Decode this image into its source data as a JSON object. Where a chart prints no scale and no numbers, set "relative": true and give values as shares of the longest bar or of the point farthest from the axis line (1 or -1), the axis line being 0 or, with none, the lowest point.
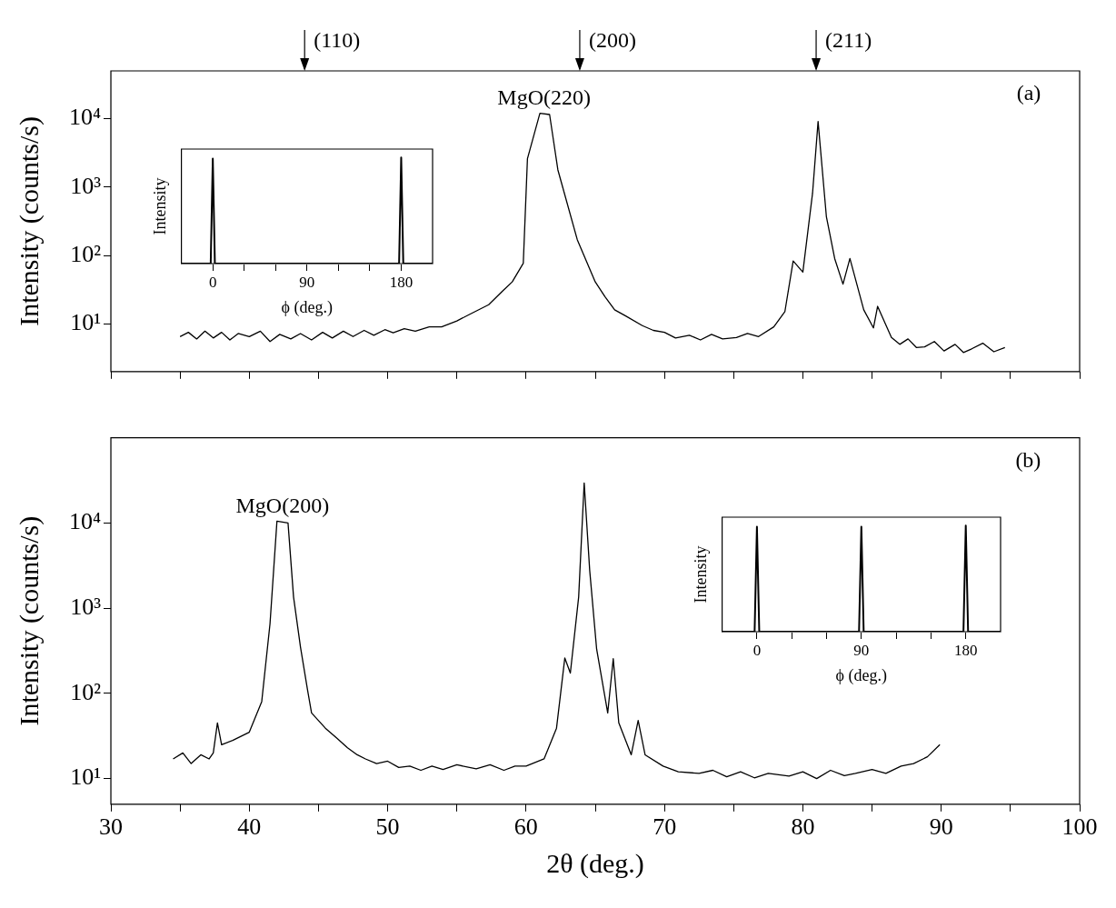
{
  "chart_data": [
    {
      "type": "line",
      "ylabel": "Intensity (counts/s)",
      "log": "y",
      "xlim": [
        30,
        100
      ],
      "xticks": [
        30,
        {
          "value": 35,
          "label": null
        },
        40,
        {
          "value": 45,
          "label": null
        },
        50,
        {
          "value": 55,
          "label": null
        },
        60,
        {
          "value": 65,
          "label": null
        },
        70,
        {
          "value": 75,
          "label": null
        },
        80,
        {
          "value": 85,
          "label": null
        },
        90,
        {
          "value": 95,
          "label": null
        },
        100
      ],
      "ylim": [
        2,
        50000
      ],
      "yticks": [
        {
          "value": 10,
          "label": "10¹"
        },
        {
          "value": 100,
          "label": "10²"
        },
        {
          "value": 1000,
          "label": "10³"
        },
        {
          "value": 10000,
          "label": "10⁴"
        }
      ],
      "tick_labels": "y",
      "grid": false,
      "marker": "none",
      "series": [
        {
          "color": "#000000",
          "x": [
            35.0,
            35.6,
            36.2,
            36.8,
            37.4,
            38,
            38.6,
            39.2,
            40,
            40.8,
            41.5,
            42.2,
            43,
            43.7,
            44.5,
            45.3,
            46,
            46.8,
            47.5,
            48.3,
            49,
            49.8,
            50.4,
            51.2,
            52,
            53,
            53.9,
            55,
            56,
            57.3,
            58.3,
            59,
            59.8,
            60.1,
            61.0,
            61.7,
            62.3,
            63.7,
            65,
            65.7,
            66.4,
            67.2,
            68.4,
            69.2,
            70,
            70.8,
            71.8,
            72.6,
            73.4,
            74.2,
            75.2,
            76,
            76.8,
            77.9,
            78.7,
            79.3,
            80.0,
            80.7,
            81.1,
            81.7,
            82.3,
            82.9,
            83.4,
            84.4,
            85.1,
            85.4,
            86.4,
            87,
            87.6,
            88.2,
            88.8,
            89.5,
            90.2,
            91,
            91.6,
            92.2,
            93,
            93.8,
            94.6
          ],
          "values": [
            6.5,
            7.5,
            6,
            7.8,
            6.2,
            7.5,
            5.8,
            7.2,
            6.5,
            7.8,
            5.5,
            7,
            6,
            7.2,
            5.8,
            7.5,
            6.2,
            7.8,
            6.5,
            8,
            6.8,
            8.2,
            7.4,
            8.5,
            7.8,
            9,
            9,
            11,
            14,
            19,
            30,
            41,
            77,
            2600,
            12000,
            11500,
            1780,
            170,
            41,
            25,
            16,
            13,
            9.4,
            8,
            7.5,
            6.2,
            6.8,
            5.8,
            7,
            6,
            6.3,
            7.2,
            6.5,
            9,
            15,
            83,
            57,
            810,
            9100,
            370,
            90,
            38,
            90,
            16,
            8.7,
            18,
            6.3,
            5,
            6,
            4.5,
            4.6,
            5.5,
            4,
            5,
            3.8,
            4.3,
            5.2,
            3.9,
            4.5
          ]
        }
      ],
      "annotations": [
        "(110)",
        "(200)",
        "(211)",
        {
          "text": "MgO(220)",
          "x": 61.3,
          "y": 12000
        },
        "(a)"
      ]
    },
    {
      "type": "line",
      "ylabel": "Intensity",
      "xlabel": "ϕ (deg.)",
      "relative": true,
      "xlim": [
        -30,
        210
      ],
      "xticks": [
        0,
        {
          "value": 30,
          "label": null
        },
        {
          "value": 60,
          "label": null
        },
        90,
        {
          "value": 120,
          "label": null
        },
        {
          "value": 150,
          "label": null
        },
        180
      ],
      "grid": false,
      "marker": "none",
      "series": [
        {
          "color": "#000000",
          "x": [
            -30,
            -2,
            0,
            2,
            178,
            180,
            182,
            210
          ],
          "values": [
            0,
            0,
            0.99,
            0,
            0,
            1,
            0,
            0
          ]
        }
      ]
    },
    {
      "type": "line",
      "ylabel": "Intensity (counts/s)",
      "xlabel": "2θ (deg.)",
      "log": "y",
      "xlim": [
        30,
        100
      ],
      "xticks": [
        30,
        {
          "value": 35,
          "label": null
        },
        40,
        {
          "value": 45,
          "label": null
        },
        50,
        {
          "value": 55,
          "label": null
        },
        60,
        {
          "value": 65,
          "label": null
        },
        70,
        {
          "value": 75,
          "label": null
        },
        80,
        {
          "value": 85,
          "label": null
        },
        90,
        {
          "value": 95,
          "label": null
        },
        100
      ],
      "ylim": [
        5,
        100000
      ],
      "yticks": [
        {
          "value": 10,
          "label": "10¹"
        },
        {
          "value": 100,
          "label": "10²"
        },
        {
          "value": 1000,
          "label": "10³"
        },
        {
          "value": 10000,
          "label": "10⁴"
        }
      ],
      "grid": false,
      "marker": "none",
      "series": [
        {
          "color": "#000000",
          "x": [
            34.5,
            35.2,
            35.8,
            36.5,
            37.1,
            37.4,
            37.7,
            38,
            38.8,
            40,
            40.9,
            41.5,
            42.0,
            42.8,
            43.2,
            43.7,
            44.2,
            44.5,
            45.5,
            46.3,
            47.1,
            47.8,
            48.4,
            49.2,
            50,
            50.8,
            51.6,
            52.4,
            53.2,
            54,
            55,
            56.4,
            57.4,
            58.4,
            59.2,
            60,
            61.3,
            62.2,
            62.8,
            63.2,
            63.8,
            64.2,
            64.6,
            65.1,
            65.9,
            66.3,
            66.7,
            67.6,
            68.1,
            68.6,
            69.9,
            71,
            72.5,
            73.5,
            74.5,
            75.5,
            76.5,
            77.5,
            79,
            80,
            81,
            82,
            83,
            83.8,
            85,
            86,
            87.1,
            88,
            89,
            89.9
          ],
          "values": [
            17,
            20,
            15,
            19,
            17,
            20,
            45,
            25,
            28,
            35,
            80,
            660,
            10500,
            10000,
            1350,
            350,
            112,
            59,
            39,
            30,
            23,
            19,
            17,
            15,
            16,
            13.5,
            14,
            12.5,
            14,
            12.8,
            14.5,
            13,
            14.5,
            12.5,
            14,
            14,
            17,
            39,
            260,
            173,
            1350,
            29500,
            2750,
            330,
            59,
            255,
            45,
            19,
            48,
            19,
            14,
            12,
            11.5,
            12.5,
            10.5,
            12,
            10.2,
            11.5,
            10.7,
            12,
            10,
            12.5,
            10.8,
            11.5,
            12.8,
            11.5,
            14,
            15,
            18,
            25
          ]
        }
      ],
      "annotations": [
        {
          "text": "MgO(200)",
          "x": 42.4,
          "y": 10500
        },
        "(b)"
      ]
    },
    {
      "type": "line",
      "ylabel": "Intensity",
      "xlabel": "ϕ (deg.)",
      "relative": true,
      "xlim": [
        -30,
        210
      ],
      "xticks": [
        0,
        {
          "value": 30,
          "label": null
        },
        {
          "value": 60,
          "label": null
        },
        90,
        {
          "value": 120,
          "label": null
        },
        {
          "value": 150,
          "label": null
        },
        180
      ],
      "grid": false,
      "marker": "none",
      "series": [
        {
          "color": "#000000",
          "x": [
            -30,
            -2,
            0,
            2,
            88,
            90,
            92,
            178,
            180,
            182,
            210
          ],
          "values": [
            0,
            0,
            0.99,
            0,
            0,
            0.99,
            0,
            0,
            1,
            0,
            0
          ]
        }
      ]
    }
  ]
}
